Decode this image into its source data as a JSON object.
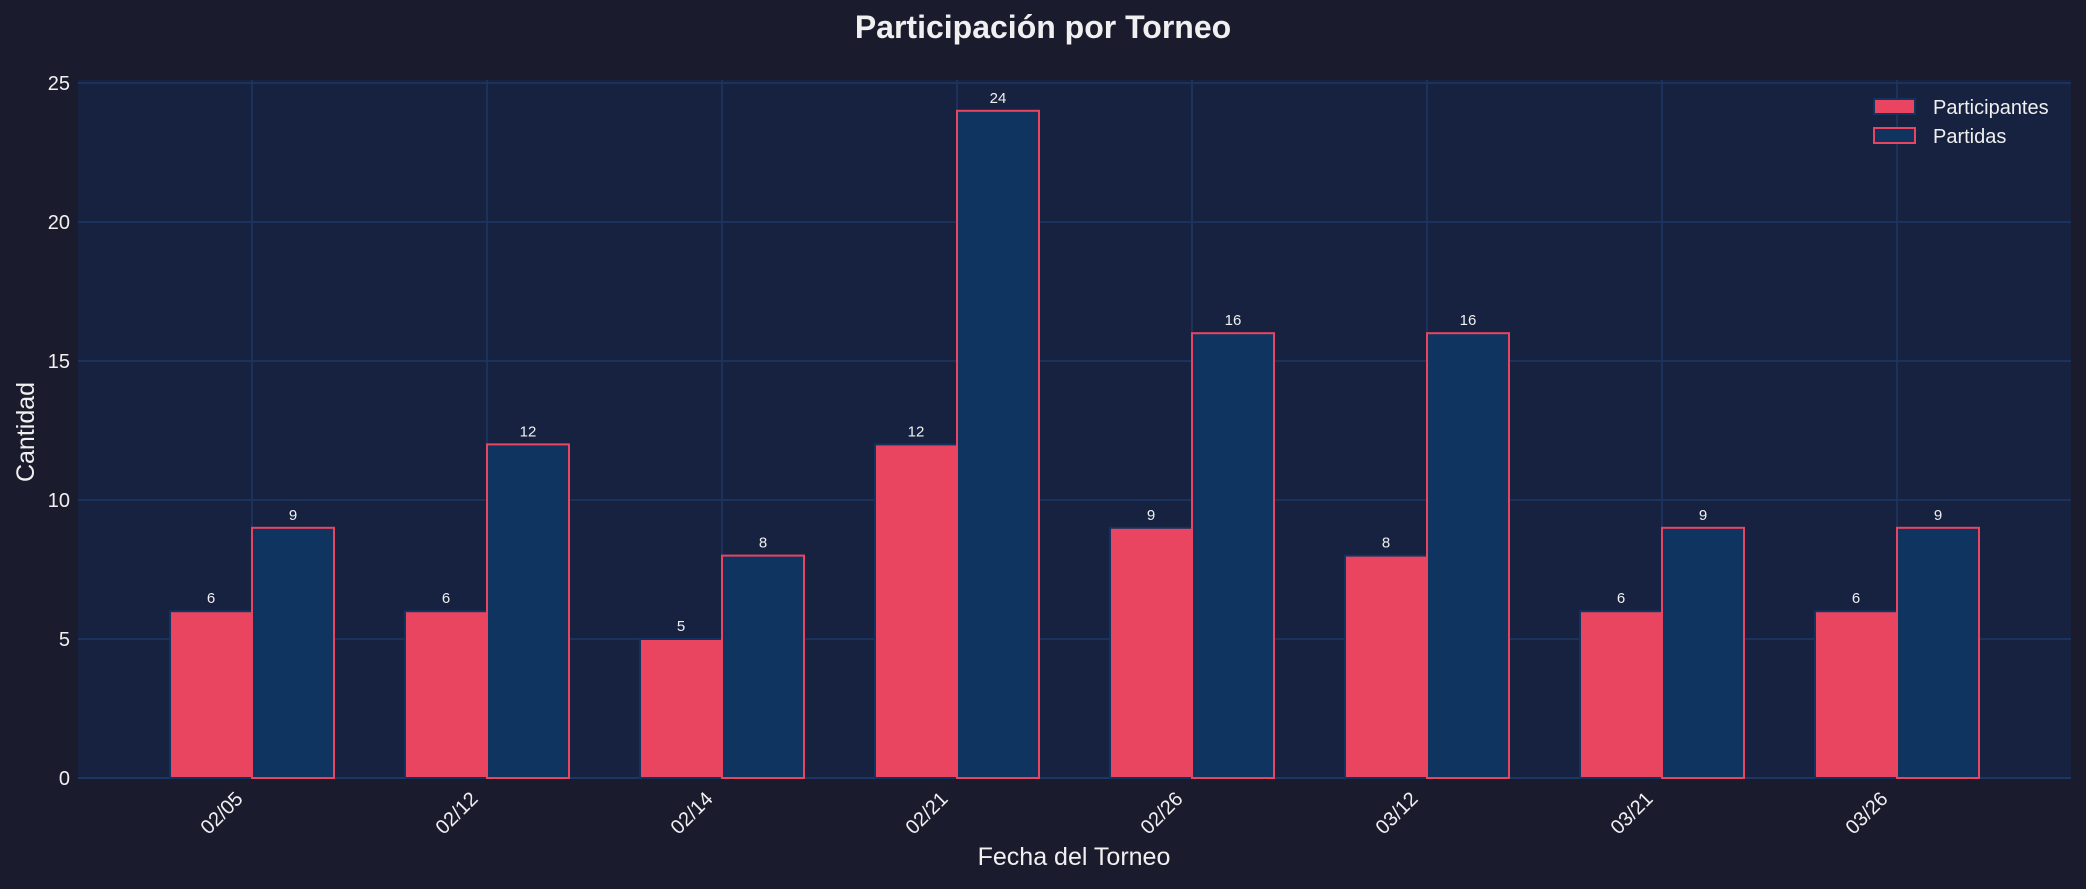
{
  "chart_data": {
    "type": "bar",
    "title": "Participación por Torneo",
    "xlabel": "Fecha del Torneo",
    "ylabel": "Cantidad",
    "categories": [
      "02/05",
      "02/12",
      "02/14",
      "02/21",
      "02/26",
      "03/12",
      "03/21",
      "03/26"
    ],
    "series": [
      {
        "name": "Participantes",
        "values": [
          6,
          6,
          5,
          12,
          9,
          8,
          6,
          6
        ],
        "fill": "#e94560",
        "edge": "#0f3460"
      },
      {
        "name": "Partidas",
        "values": [
          9,
          12,
          8,
          24,
          16,
          16,
          9,
          9
        ],
        "fill": "#0f3460",
        "edge": "#e94560"
      }
    ],
    "ylim": [
      0,
      25
    ],
    "yticks": [
      0,
      5,
      10,
      15,
      20,
      25
    ],
    "grid": true,
    "legend": "top-right",
    "colors": {
      "background": "#1b1b2e",
      "plot_background": "#172240",
      "grid": "#1b3766",
      "text": "#f0f0f0"
    }
  }
}
